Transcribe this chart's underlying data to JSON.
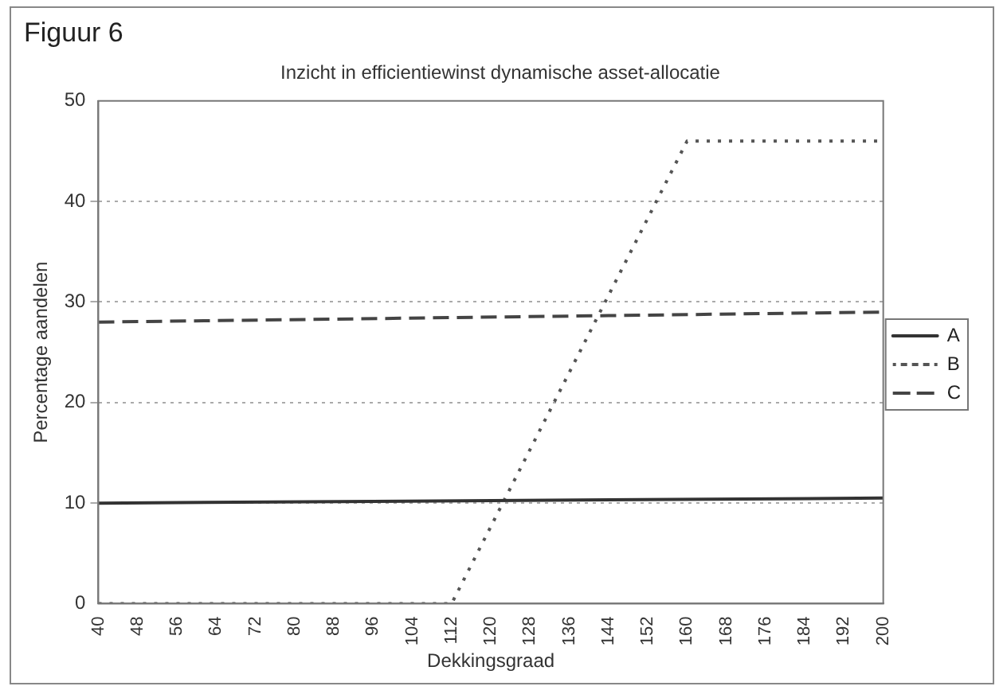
{
  "chart_data": {
    "type": "line",
    "title": "Figuur 6",
    "subtitle": "Inzicht in efficientiewinst dynamische asset-allocatie",
    "xlabel": "Dekkingsgraad",
    "ylabel": "Percentage aandelen",
    "xlim": [
      40,
      200
    ],
    "xticks": [
      40,
      48,
      56,
      64,
      72,
      80,
      88,
      96,
      104,
      112,
      120,
      128,
      136,
      144,
      152,
      160,
      168,
      176,
      184,
      192,
      200
    ],
    "ylim": [
      0,
      50
    ],
    "yticks": [
      0,
      10,
      20,
      30,
      40,
      50
    ],
    "grid": "y",
    "legend": "right",
    "marker": "none",
    "series": [
      {
        "name": "A",
        "color": "#333333",
        "line_style": "solid",
        "x": [
          40,
          200
        ],
        "values": [
          10,
          10.5
        ]
      },
      {
        "name": "B",
        "color": "#555555",
        "line_style": "dotted",
        "x": [
          40,
          112,
          160,
          200
        ],
        "values": [
          0,
          0,
          46,
          46
        ]
      },
      {
        "name": "C",
        "color": "#444444",
        "line_style": "dashed",
        "x": [
          40,
          200
        ],
        "values": [
          28,
          29
        ]
      }
    ]
  }
}
